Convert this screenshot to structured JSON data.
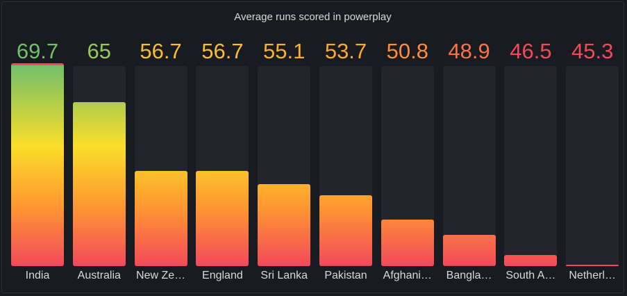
{
  "panel": {
    "title": "Average runs scored in powerplay"
  },
  "chart_data": {
    "type": "bar",
    "title": "Average runs scored in powerplay",
    "categories": [
      "India",
      "Australia",
      "New Zealand",
      "England",
      "Sri Lanka",
      "Pakistan",
      "Afghanistan",
      "Bangladesh",
      "South Africa",
      "Netherlands"
    ],
    "category_labels": [
      "India",
      "Australia",
      "New Ze…",
      "England",
      "Sri Lanka",
      "Pakistan",
      "Afghani…",
      "Bangla…",
      "South A…",
      "Netherl…"
    ],
    "values": [
      69.7,
      65,
      56.7,
      56.7,
      55.1,
      53.7,
      50.8,
      48.9,
      46.5,
      45.3
    ],
    "value_labels": [
      "69.7",
      "65",
      "56.7",
      "56.7",
      "55.1",
      "53.7",
      "50.8",
      "48.9",
      "46.5",
      "45.3"
    ],
    "ylim": [
      45.3,
      69.7
    ],
    "value_colors": [
      "#73bf69",
      "#96c85a",
      "#fabd2f",
      "#fabd2f",
      "#fab02f",
      "#ffa82f",
      "#ff8c3b",
      "#fa7347",
      "#f2495c",
      "#f2495c"
    ],
    "gradient_colors": [
      "#f2495c",
      "#ff9830",
      "#fade2a",
      "#73bf69"
    ],
    "track_color": "#22252b"
  }
}
